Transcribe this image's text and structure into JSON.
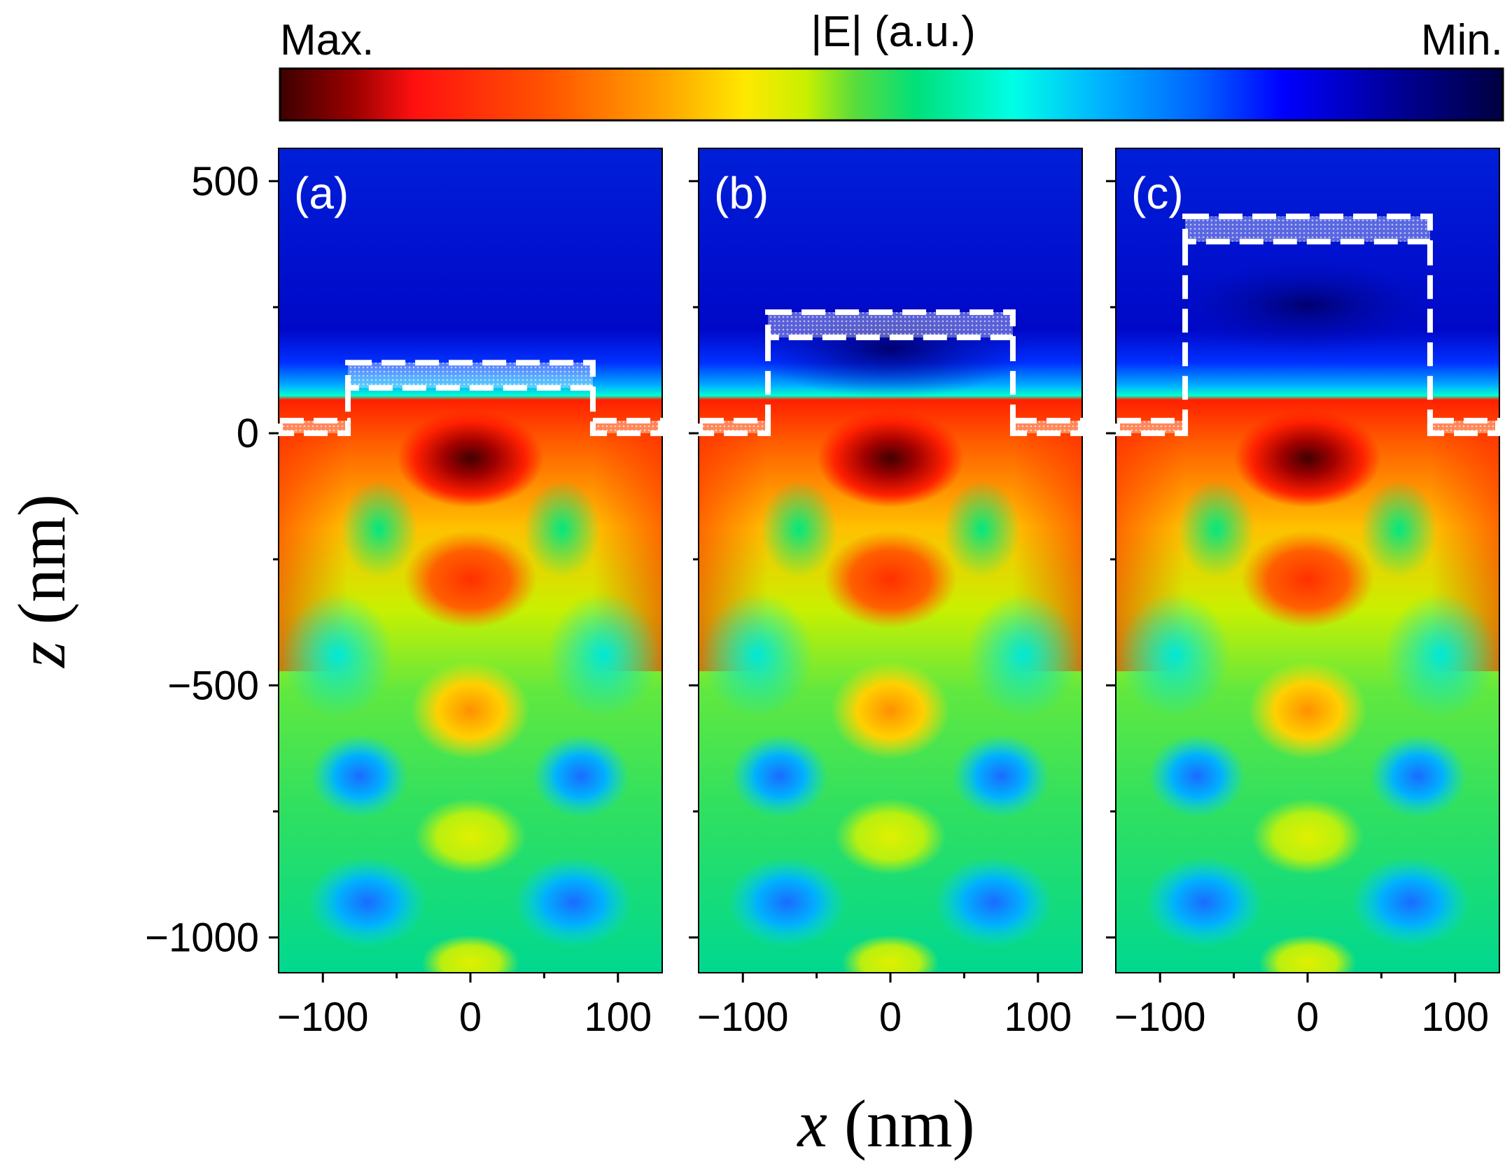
{
  "chart_data": {
    "type": "heatmap",
    "title": "|E| (a.u.)",
    "colorbar": {
      "quantity": "|E| (a.u.)",
      "left_label": "Max.",
      "right_label": "Min.",
      "orientation": "horizontal",
      "placement": "top",
      "colormap": "jet (reversed)"
    },
    "ylabel": "z (nm)",
    "ylabel_var": "z",
    "ylabel_unit": "(nm)",
    "xlabel": "x (nm)",
    "xlabel_var": "x",
    "xlabel_unit": "(nm)",
    "ylim": [
      -1070,
      565
    ],
    "yticks": [
      500,
      0,
      -500,
      -1000
    ],
    "ytick_labels": [
      "500",
      "0",
      "−500",
      "−1000"
    ],
    "xlim": [
      -130,
      130
    ],
    "xticks": [
      -100,
      0,
      100
    ],
    "xtick_labels": [
      "−100",
      "0",
      "100"
    ],
    "panels": [
      {
        "label": "(a)",
        "structure_top_nm": 140,
        "structure_half_width_nm": 83
      },
      {
        "label": "(b)",
        "structure_top_nm": 240,
        "structure_half_width_nm": 83
      },
      {
        "label": "(c)",
        "structure_top_nm": 430,
        "structure_half_width_nm": 83
      }
    ]
  }
}
